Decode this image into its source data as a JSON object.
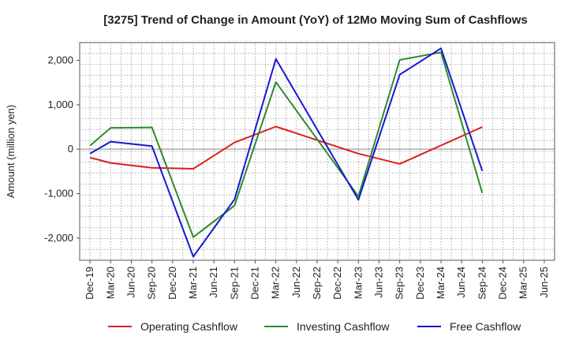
{
  "chart_data": {
    "type": "line",
    "title": "[3275]  Trend of Change in Amount (YoY) of 12Mo Moving Sum of Cashflows",
    "xlabel": "",
    "ylabel": "Amount (million yen)",
    "ylim": [
      -2500,
      2400
    ],
    "yticks": [
      -2000,
      -1000,
      0,
      1000,
      2000
    ],
    "ytick_labels": [
      "-2,000",
      "-1,000",
      "0",
      "1,000",
      "2,000"
    ],
    "categories": [
      "Dec-19",
      "Mar-20",
      "Jun-20",
      "Sep-20",
      "Dec-20",
      "Mar-21",
      "Jun-21",
      "Sep-21",
      "Dec-21",
      "Mar-22",
      "Jun-22",
      "Sep-22",
      "Dec-22",
      "Mar-23",
      "Jun-23",
      "Sep-23",
      "Dec-23",
      "Mar-24",
      "Jun-24",
      "Sep-24",
      "Dec-24",
      "Mar-25"
    ],
    "tick_labels": [
      "Dec-19",
      "Mar-20",
      "Jun-20",
      "Sep-20",
      "Dec-20",
      "Mar-21",
      "Jun-21",
      "Sep-21",
      "Dec-21",
      "Mar-22",
      "Jun-22",
      "Sep-22",
      "Dec-22",
      "Mar-23",
      "Jun-23",
      "Sep-23",
      "Dec-23",
      "Mar-24",
      "Jun-24",
      "Sep-24",
      "Dec-24",
      "Mar-25",
      "Jun-25"
    ],
    "grid": true,
    "legend": "bottom",
    "series": [
      {
        "name": "Operating Cashflow",
        "color": "#dd1f1f",
        "values": [
          -190,
          -310,
          null,
          -420,
          null,
          -440,
          null,
          150,
          null,
          510,
          null,
          null,
          null,
          -100,
          null,
          -330,
          null,
          null,
          null,
          500,
          null,
          null
        ]
      },
      {
        "name": "Investing Cashflow",
        "color": "#2e8b2e",
        "values": [
          80,
          480,
          null,
          490,
          null,
          -1980,
          null,
          -1270,
          null,
          1510,
          null,
          null,
          null,
          -1060,
          null,
          2010,
          null,
          2180,
          null,
          -990,
          null,
          null
        ]
      },
      {
        "name": "Free Cashflow",
        "color": "#1818d0",
        "values": [
          -100,
          170,
          null,
          70,
          null,
          -2420,
          null,
          -1130,
          null,
          2030,
          null,
          null,
          null,
          -1140,
          null,
          1680,
          null,
          2270,
          null,
          -490,
          null,
          null
        ]
      }
    ]
  }
}
